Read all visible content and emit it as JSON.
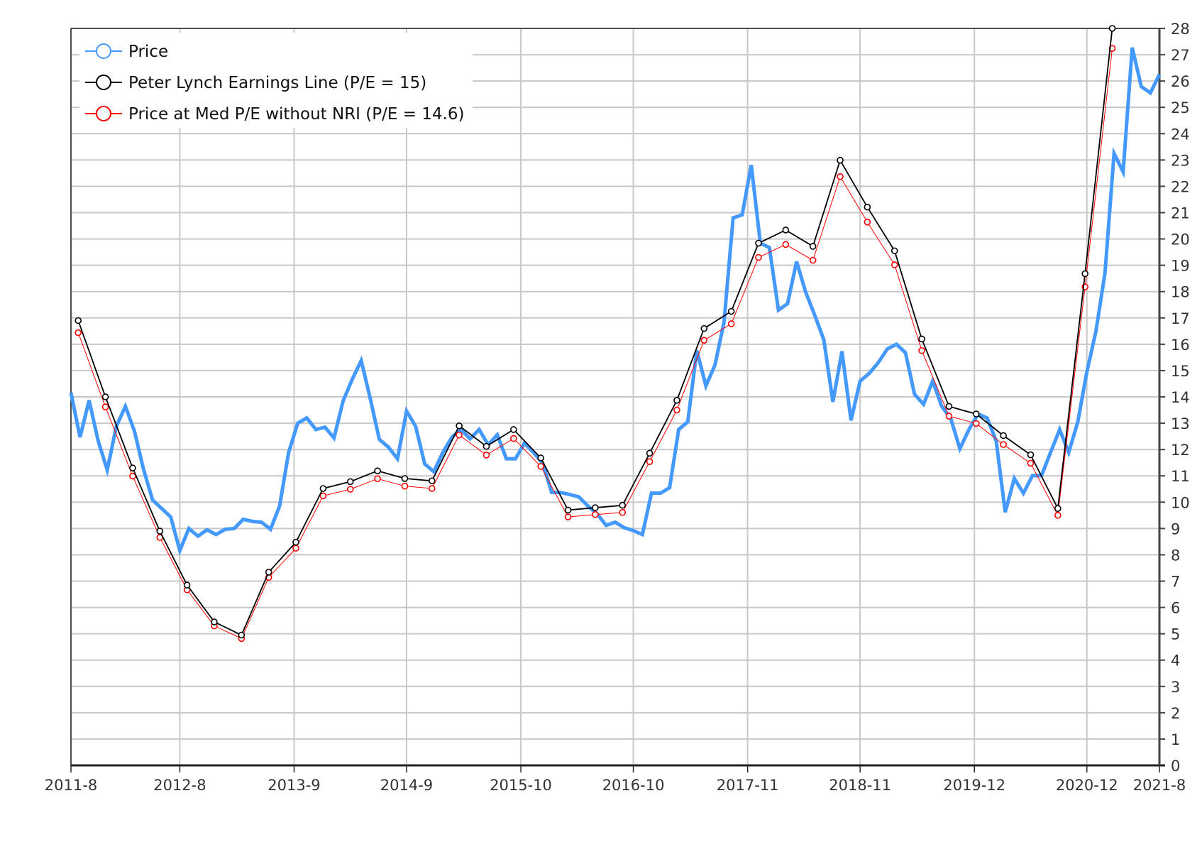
{
  "chart_data": {
    "type": "line",
    "title": "",
    "xlabel": "",
    "ylabel": "",
    "x_unit": "months since 2011-8",
    "xlim": [
      0,
      120
    ],
    "ylim": [
      0,
      28
    ],
    "y_ticks": [
      0,
      1,
      2,
      3,
      4,
      5,
      6,
      7,
      8,
      9,
      10,
      11,
      12,
      13,
      14,
      15,
      16,
      17,
      18,
      19,
      20,
      21,
      22,
      23,
      24,
      25,
      26,
      27,
      28
    ],
    "x_ticks": [
      {
        "label": "2011-8",
        "x": 0
      },
      {
        "label": "2012-8",
        "x": 12
      },
      {
        "label": "2013-9",
        "x": 24.6
      },
      {
        "label": "2014-9",
        "x": 37
      },
      {
        "label": "2015-10",
        "x": 49.6
      },
      {
        "label": "2016-10",
        "x": 62
      },
      {
        "label": "2017-11",
        "x": 74.6
      },
      {
        "label": "2018-11",
        "x": 87
      },
      {
        "label": "2019-12",
        "x": 99.6
      },
      {
        "label": "2020-12",
        "x": 112
      },
      {
        "label": "2021-8",
        "x": 120
      }
    ],
    "grid": true,
    "legend_position": "top-left",
    "series": [
      {
        "name": "Price",
        "color": "#4499ff",
        "x_start": 0,
        "x_step": 1,
        "values": [
          14.16,
          12.47,
          13.87,
          12.33,
          11.22,
          12.88,
          13.64,
          12.7,
          11.25,
          10.08,
          9.76,
          9.44,
          8.16,
          9.0,
          8.71,
          8.95,
          8.77,
          8.97,
          9.0,
          9.35,
          9.27,
          9.24,
          8.97,
          9.85,
          11.89,
          13.0,
          13.2,
          12.76,
          12.85,
          12.44,
          13.84,
          14.66,
          15.38,
          13.93,
          12.38,
          12.09,
          11.65,
          13.46,
          12.88,
          11.45,
          11.16,
          11.89,
          12.47,
          12.76,
          12.41,
          12.76,
          12.18,
          12.56,
          11.65,
          11.65,
          12.24,
          11.89,
          11.48,
          10.37,
          10.37,
          10.29,
          10.2,
          9.85,
          9.56,
          9.12,
          9.24,
          9.03,
          8.92,
          8.77,
          10.34,
          10.34,
          10.55,
          12.76,
          13.05,
          15.76,
          14.42,
          15.21,
          16.84,
          20.8,
          20.92,
          22.81,
          19.84,
          19.67,
          17.3,
          17.54,
          19.14,
          17.98,
          17.1,
          16.17,
          13.81,
          15.73,
          13.11,
          14.6,
          14.89,
          15.3,
          15.82,
          16.0,
          15.68,
          14.1,
          13.72,
          14.6,
          13.64,
          13.17,
          12.03,
          12.76,
          13.35,
          13.2,
          12.33,
          9.62,
          10.9,
          10.34,
          11.01,
          11.01,
          11.89,
          12.76,
          11.89,
          13.05,
          14.95,
          16.49,
          18.71,
          23.25,
          22.55,
          27.27,
          25.79,
          25.55,
          26.25
        ]
      },
      {
        "name": "Peter Lynch Earnings Line (P/E = 15)",
        "color": "#000000",
        "x_start": 0.8,
        "x_step": 3,
        "values": [
          16.9,
          14.0,
          11.3,
          8.9,
          6.85,
          5.45,
          4.95,
          7.34,
          8.48,
          10.52,
          10.78,
          11.19,
          10.9,
          10.81,
          12.9,
          12.12,
          12.76,
          11.68,
          9.7,
          9.79,
          9.88,
          11.86,
          13.87,
          16.6,
          17.25,
          19.84,
          20.34,
          19.72,
          22.99,
          21.21,
          19.55,
          16.2,
          13.64,
          13.35,
          12.53,
          11.8,
          9.76,
          18.68,
          28.0
        ]
      },
      {
        "name": "Price at Med P/E without NRI (P/E = 14.6)",
        "color": "#ff0000",
        "x_start": 0.8,
        "x_step": 3,
        "values": [
          16.44,
          13.62,
          10.99,
          8.66,
          6.67,
          5.3,
          4.82,
          7.14,
          8.25,
          10.24,
          10.49,
          10.89,
          10.61,
          10.52,
          12.55,
          11.79,
          12.42,
          11.36,
          9.44,
          9.53,
          9.61,
          11.54,
          13.5,
          16.15,
          16.78,
          19.3,
          19.79,
          19.19,
          22.37,
          20.64,
          19.02,
          15.76,
          13.27,
          12.99,
          12.19,
          11.48,
          9.5,
          18.18,
          27.24
        ]
      }
    ]
  }
}
